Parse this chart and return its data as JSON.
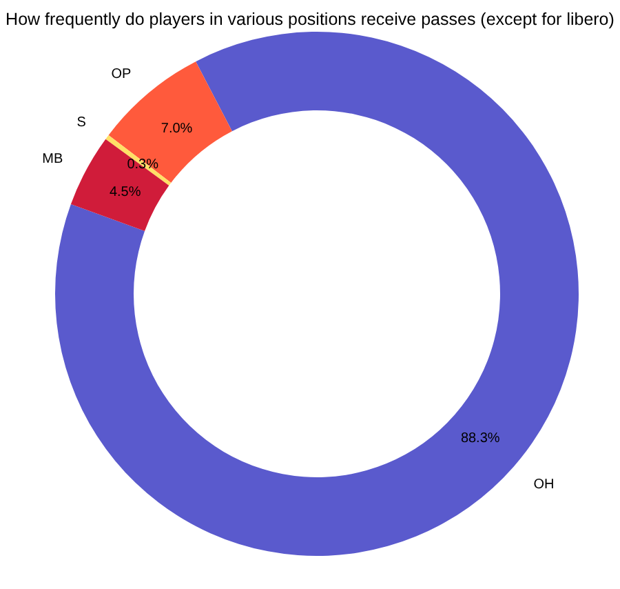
{
  "chart_data": {
    "type": "donut",
    "title": "How frequently do players in various positions receive passes (except for libero)",
    "categories": [
      "OH",
      "OP",
      "S",
      "MB"
    ],
    "values": [
      88.3,
      7.0,
      0.3,
      4.5
    ],
    "value_labels": [
      "88.3%",
      "7.0%",
      "0.3%",
      "4.5%"
    ],
    "colors": [
      "#5a5acd",
      "#ff5a3c",
      "#ffe066",
      "#d01c3a"
    ]
  }
}
